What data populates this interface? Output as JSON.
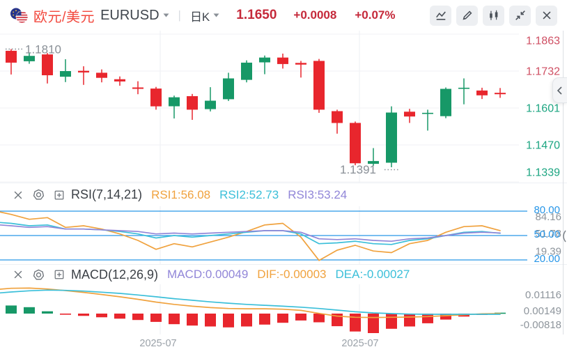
{
  "header": {
    "pair_cn": "欧元/美元",
    "symbol": "EURUSD",
    "separator": "|",
    "period": "日K",
    "price": "1.1650",
    "change": "+0.0008",
    "change_pct": "+0.07%",
    "toolbar_icons": [
      "line-chart-icon",
      "edit-icon",
      "candlestick-icon",
      "collapse-icon",
      "close-icon"
    ]
  },
  "indicators": {
    "rsi": {
      "title": "RSI(7,14,21)",
      "values": [
        {
          "label": "RSI1:56.08",
          "color": "#f0a23e"
        },
        {
          "label": "RSI2:52.73",
          "color": "#3bbfd9"
        },
        {
          "label": "RSI3:53.24",
          "color": "#9186d8"
        }
      ]
    },
    "macd": {
      "title": "MACD(12,26,9)",
      "values": [
        {
          "label": "MACD:0.00049",
          "color": "#9186d8"
        },
        {
          "label": "DIF:-0.00003",
          "color": "#f0a23e"
        },
        {
          "label": "DEA:-0.00027",
          "color": "#3bbfd9"
        }
      ]
    }
  },
  "x_axis": [
    {
      "text": "2025-07",
      "x": 227
    },
    {
      "text": "2025-07",
      "x": 517
    }
  ],
  "colors": {
    "up": "#179867",
    "down": "#e8262d",
    "axis_red": "#cf4f63",
    "axis_green": "#1ca581",
    "price_red": "#c5293a",
    "pair_red": "#f2483d",
    "blue": "#2796e8",
    "gray_label": "#8e959c",
    "note": "#8a9097",
    "grid_h": "#f1f2f5",
    "grid_v": "#eceff3",
    "rsi1": "#f0a23e",
    "rsi2": "#3bbfd9",
    "rsi3": "#9186d8",
    "dif": "#f0a23e",
    "dea": "#3bbfd9"
  },
  "chart_data": [
    {
      "type": "candlestick",
      "symbol": "EURUSD",
      "period": "日K",
      "ylim": [
        1.1339,
        1.1863
      ],
      "x_gridlines": [
        230,
        516
      ],
      "y_axis": {
        "prices": [
          1.1863,
          1.1732,
          1.1601,
          1.147,
          1.1339
        ],
        "labels": [
          {
            "text": "1.1863",
            "color": "#cf4f63"
          },
          {
            "text": "1.1732",
            "color": "#cf4f63"
          },
          {
            "text": "1.1601",
            "color": "#1ca581"
          },
          {
            "text": "1.1470",
            "color": "#1ca581"
          },
          {
            "text": "1.1339",
            "color": "#1ca581"
          }
        ]
      },
      "annotations": [
        {
          "text": "1.1810",
          "price": 1.181,
          "text_x": 36,
          "dots": [
            8,
            33
          ],
          "dot_dy": 0,
          "text_dy": 6
        },
        {
          "text": "1.1391",
          "price": 1.1391,
          "text_x": 488,
          "dots": [
            552,
            574
          ],
          "dot_dy": 3.5,
          "text_dy": 9
        }
      ],
      "candles": [
        [
          1.1804,
          1.181,
          1.172,
          1.1762
        ],
        [
          1.1767,
          1.1798,
          1.1758,
          1.1786
        ],
        [
          1.1791,
          1.1796,
          1.1688,
          1.1717
        ],
        [
          1.1712,
          1.1774,
          1.1693,
          1.1732
        ],
        [
          1.1733,
          1.1749,
          1.1683,
          1.1727
        ],
        [
          1.1726,
          1.1738,
          1.1692,
          1.1708
        ],
        [
          1.1703,
          1.1713,
          1.168,
          1.1695
        ],
        [
          1.1674,
          1.1696,
          1.165,
          1.1669
        ],
        [
          1.167,
          1.1676,
          1.1595,
          1.1607
        ],
        [
          1.1607,
          1.1645,
          1.1564,
          1.1639
        ],
        [
          1.1643,
          1.1651,
          1.1559,
          1.1595
        ],
        [
          1.1597,
          1.1675,
          1.1589,
          1.1627
        ],
        [
          1.1632,
          1.1726,
          1.1626,
          1.1706
        ],
        [
          1.1701,
          1.177,
          1.1692,
          1.1762
        ],
        [
          1.1763,
          1.1787,
          1.1721,
          1.178
        ],
        [
          1.178,
          1.1794,
          1.1741,
          1.1757
        ],
        [
          1.1761,
          1.1768,
          1.1709,
          1.1755
        ],
        [
          1.1768,
          1.1775,
          1.1584,
          1.1595
        ],
        [
          1.159,
          1.1595,
          1.151,
          1.1548
        ],
        [
          1.1548,
          1.1553,
          1.1398,
          1.1405
        ],
        [
          1.1403,
          1.1459,
          1.1396,
          1.1413
        ],
        [
          1.1407,
          1.1607,
          1.1391,
          1.1585
        ],
        [
          1.1588,
          1.1598,
          1.1548,
          1.1571
        ],
        [
          1.158,
          1.1595,
          1.1521,
          1.1584
        ],
        [
          1.1572,
          1.1674,
          1.1565,
          1.1669
        ],
        [
          1.1669,
          1.1706,
          1.1614,
          1.1673
        ],
        [
          1.1663,
          1.1673,
          1.1633,
          1.1646
        ],
        [
          1.1655,
          1.1672,
          1.1637,
          1.165
        ]
      ]
    },
    {
      "type": "line",
      "name": "RSI(7,14,21)",
      "thresholds": [
        80,
        50,
        20
      ],
      "threshold_labels": [
        "80.00",
        "50.00",
        "20.00"
      ],
      "range_labels": [
        "84.16",
        "51.78",
        "19.39"
      ],
      "series": [
        {
          "name": "RSI1",
          "color": "#f0a23e",
          "edge": 79,
          "values": [
            76,
            70,
            72,
            60,
            62,
            58,
            52,
            44,
            33,
            40,
            36,
            42,
            48,
            55,
            63,
            65,
            48,
            19.4,
            32,
            38,
            31,
            29,
            40,
            44,
            54,
            61,
            62,
            56.1
          ]
        },
        {
          "name": "RSI2",
          "color": "#3bbfd9",
          "edge": 66,
          "values": [
            65,
            62,
            63,
            58,
            58,
            57,
            55,
            52,
            47,
            50,
            48,
            50,
            52,
            54,
            56,
            56,
            52,
            40,
            41,
            43,
            40,
            39,
            44,
            46,
            50,
            54,
            55,
            52.7
          ]
        },
        {
          "name": "RSI3",
          "color": "#9186d8",
          "edge": 63,
          "values": [
            62,
            60,
            61,
            58,
            58,
            57,
            56,
            55,
            52,
            53,
            52,
            53,
            54,
            55,
            56,
            56,
            54,
            46,
            45,
            46,
            44,
            43,
            46,
            47,
            50,
            53,
            54,
            53.2
          ]
        }
      ]
    },
    {
      "type": "macd",
      "name": "MACD(12,26,9)",
      "axis_labels": [
        "0.01116",
        "0.00149",
        "-0.00818"
      ],
      "bars": [
        0.0035,
        0.0028,
        0.001,
        -0.0004,
        -0.001,
        -0.0016,
        -0.0022,
        -0.0028,
        -0.0036,
        -0.0046,
        -0.0052,
        -0.0056,
        -0.006,
        -0.0056,
        -0.0048,
        -0.004,
        -0.003,
        -0.0038,
        -0.0055,
        -0.0078,
        -0.0085,
        -0.0066,
        -0.0056,
        -0.0042,
        -0.0026,
        -0.0013,
        -0.0006,
        0.0004
      ],
      "dif": {
        "color": "#f0a23e",
        "edge": 0.0106,
        "values": [
          0.011,
          0.0111,
          0.0107,
          0.01,
          0.0092,
          0.0083,
          0.0073,
          0.0062,
          0.005,
          0.004,
          0.0032,
          0.0026,
          0.0022,
          0.0021,
          0.0021,
          0.0019,
          0.0014,
          0.0001,
          -0.0011,
          -0.0016,
          -0.0017,
          -0.0016,
          -0.0015,
          -0.0013,
          -0.0009,
          -0.0005,
          -0.0001,
          0.0
        ]
      },
      "dea": {
        "color": "#3bbfd9",
        "edge": 0.009,
        "values": [
          0.0094,
          0.0099,
          0.0102,
          0.0101,
          0.0098,
          0.0093,
          0.0088,
          0.0081,
          0.0073,
          0.0065,
          0.0058,
          0.0051,
          0.0045,
          0.004,
          0.0036,
          0.0032,
          0.0028,
          0.0022,
          0.0015,
          0.0008,
          0.0003,
          0.0,
          -0.0002,
          -0.0003,
          -0.0003,
          -0.0003,
          -0.0003,
          -0.0003
        ]
      }
    }
  ]
}
